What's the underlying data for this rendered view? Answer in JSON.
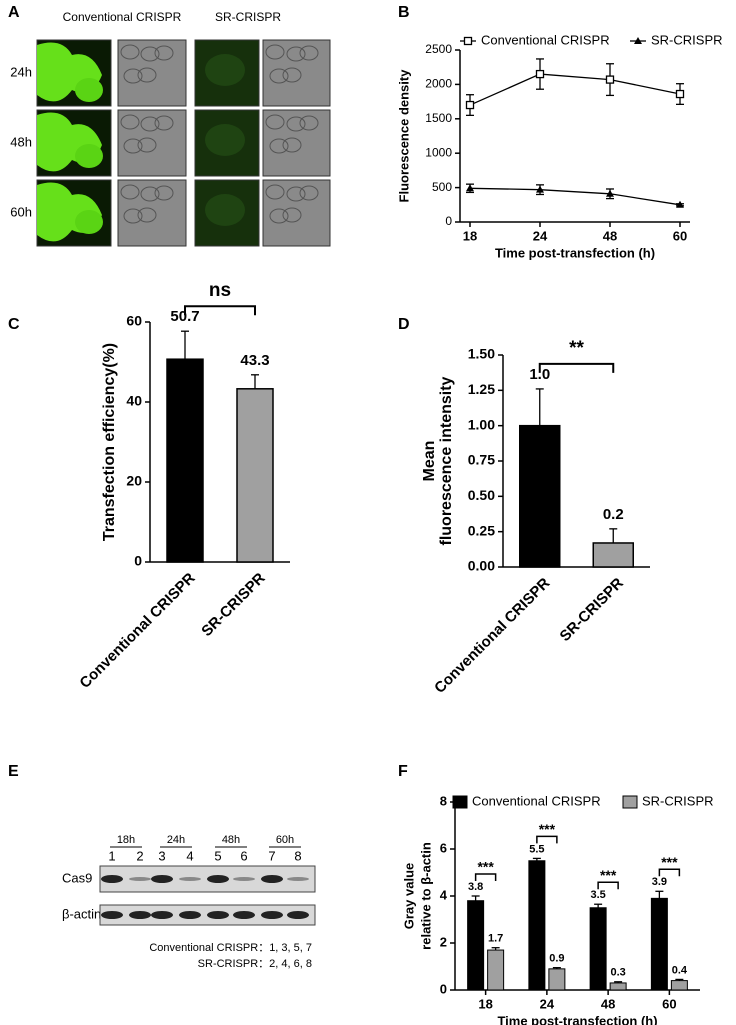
{
  "panel_a": {
    "panel": "A",
    "columns": [
      "Conventional CRISPR",
      "SR-CRISPR"
    ],
    "rows": [
      "24h",
      "48h",
      "60h"
    ]
  },
  "chart_data": [
    {
      "panel": "B",
      "type": "line",
      "categories": [
        "18",
        "24",
        "48",
        "60"
      ],
      "ylabel": [
        "Fluorescence density"
      ],
      "xlabel": "Time post-transfection (h)",
      "ylim": [
        0,
        2500
      ],
      "yticks": [
        0,
        500,
        1000,
        1500,
        2000,
        2500
      ],
      "series": [
        {
          "name": "Conventional CRISPR",
          "color": "#000000",
          "marker": "square",
          "values": [
            1700,
            2150,
            2070,
            1860
          ],
          "errors": [
            150,
            220,
            230,
            150
          ]
        },
        {
          "name": "SR-CRISPR",
          "color": "#000000",
          "marker": "triangle",
          "values": [
            490,
            470,
            410,
            250
          ],
          "errors": [
            60,
            70,
            70,
            15
          ]
        }
      ]
    },
    {
      "panel": "C",
      "type": "bar",
      "categories": [
        "Conventional CRISPR",
        "SR-CRISPR"
      ],
      "values": [
        50.7,
        43.3
      ],
      "errors": [
        7,
        3.5
      ],
      "colors": [
        "#000000",
        "#a0a0a0"
      ],
      "ylabel": [
        "Transfection efficiency(%)"
      ],
      "ylim": [
        0,
        60
      ],
      "yticks": [
        0,
        20,
        40,
        60
      ],
      "annotations": [
        "ns"
      ]
    },
    {
      "panel": "D",
      "type": "bar",
      "categories": [
        "Conventional CRISPR",
        "SR-CRISPR"
      ],
      "values": [
        1.0,
        0.17
      ],
      "value_labels": [
        "1.0",
        "0.2"
      ],
      "errors": [
        0.26,
        0.1
      ],
      "colors": [
        "#000000",
        "#a0a0a0"
      ],
      "ylabel": [
        "Mean",
        "fluorescence intensity"
      ],
      "ylim": [
        0,
        1.5
      ],
      "yticks": [
        {
          "value": 0,
          "label": "0.00"
        },
        {
          "value": 0.25,
          "label": "0.25"
        },
        {
          "value": 0.5,
          "label": "0.50"
        },
        {
          "value": 0.75,
          "label": "0.75"
        },
        {
          "value": 1,
          "label": "1.00"
        },
        {
          "value": 1.25,
          "label": "1.25"
        },
        {
          "value": 1.5,
          "label": "1.50"
        }
      ],
      "annotations": [
        "**"
      ]
    },
    {
      "panel": "F",
      "type": "bar",
      "categories": [
        "18",
        "24",
        "48",
        "60"
      ],
      "series": [
        {
          "name": "Conventional CRISPR",
          "color": "#000000",
          "values": [
            3.8,
            5.5,
            3.5,
            3.9
          ],
          "errors": [
            0.2,
            0.1,
            0.15,
            0.3
          ]
        },
        {
          "name": "SR-CRISPR",
          "color": "#a0a0a0",
          "values": [
            1.7,
            0.9,
            0.3,
            0.4
          ],
          "errors": [
            0.1,
            0.05,
            0.05,
            0.05
          ]
        }
      ],
      "ylabel": [
        "Gray value",
        "relative to β-actin"
      ],
      "xlabel": "Time post-transfection (h)",
      "ylim": [
        0,
        8
      ],
      "yticks": [
        0,
        2,
        4,
        6,
        8
      ],
      "annotations": [
        "***",
        "***",
        "***",
        "***"
      ]
    }
  ],
  "panel_e": {
    "panel": "E",
    "timepoints": [
      "18h",
      "24h",
      "48h",
      "60h"
    ],
    "lanes": [
      "1",
      "2",
      "3",
      "4",
      "5",
      "6",
      "7",
      "8"
    ],
    "rows": [
      "Cas9",
      "β-actin"
    ],
    "legend": [
      "Conventional CRISPR：1, 3, 5, 7",
      "SR-CRISPR：2, 4, 6, 8"
    ]
  }
}
